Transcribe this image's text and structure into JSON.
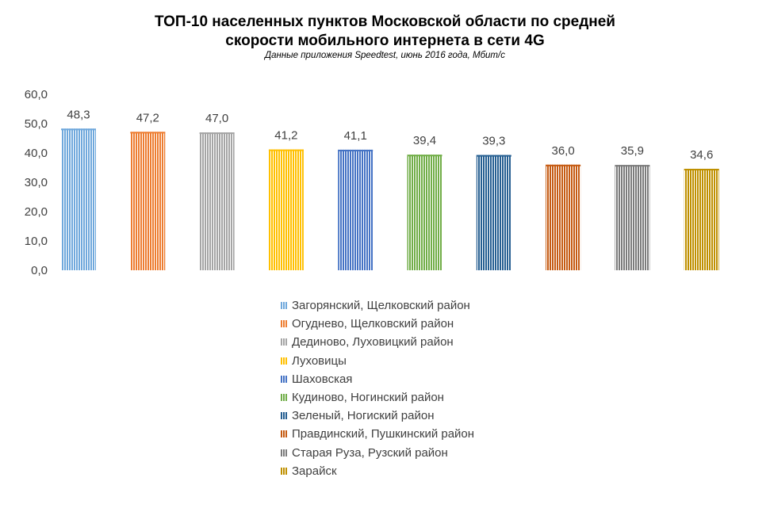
{
  "chart_data": {
    "type": "bar",
    "title": "ТОП-10 населенных пунктов Московской области по средней",
    "title_line2": "скорости мобильного интернета в сети 4G",
    "subtitle": "Данные приложения Speedtest, июнь 2016 года, Мбит/с",
    "xlabel": "",
    "ylabel": "",
    "ylim": [
      0,
      60
    ],
    "ytick_labels": [
      "0,0",
      "10,0",
      "20,0",
      "30,0",
      "40,0",
      "50,0",
      "60,0"
    ],
    "grid": false,
    "legend_position": "bottom",
    "categories": [
      "Загорянский, Щелковский район",
      "Огуднево, Щелковский район",
      "Дединово, Луховицкий район",
      "Луховицы",
      "Шаховская",
      "Кудиново, Ногинский район",
      "Зеленый, Ногиский район",
      "Правдинский, Пушкинский район",
      "Старая Руза, Рузский район",
      "Зарайск"
    ],
    "values": [
      48.3,
      47.2,
      47.0,
      41.2,
      41.1,
      39.4,
      39.3,
      36.0,
      35.9,
      34.6
    ],
    "value_labels": [
      "48,3",
      "47,2",
      "47,0",
      "41,2",
      "41,1",
      "39,4",
      "39,3",
      "36,0",
      "35,9",
      "34,6"
    ],
    "colors": [
      "#6fa8dc",
      "#ed7d31",
      "#a5a5a5",
      "#ffc000",
      "#4472c4",
      "#70ad47",
      "#255e91",
      "#c55a11",
      "#7b7b7b",
      "#bf9000"
    ]
  }
}
